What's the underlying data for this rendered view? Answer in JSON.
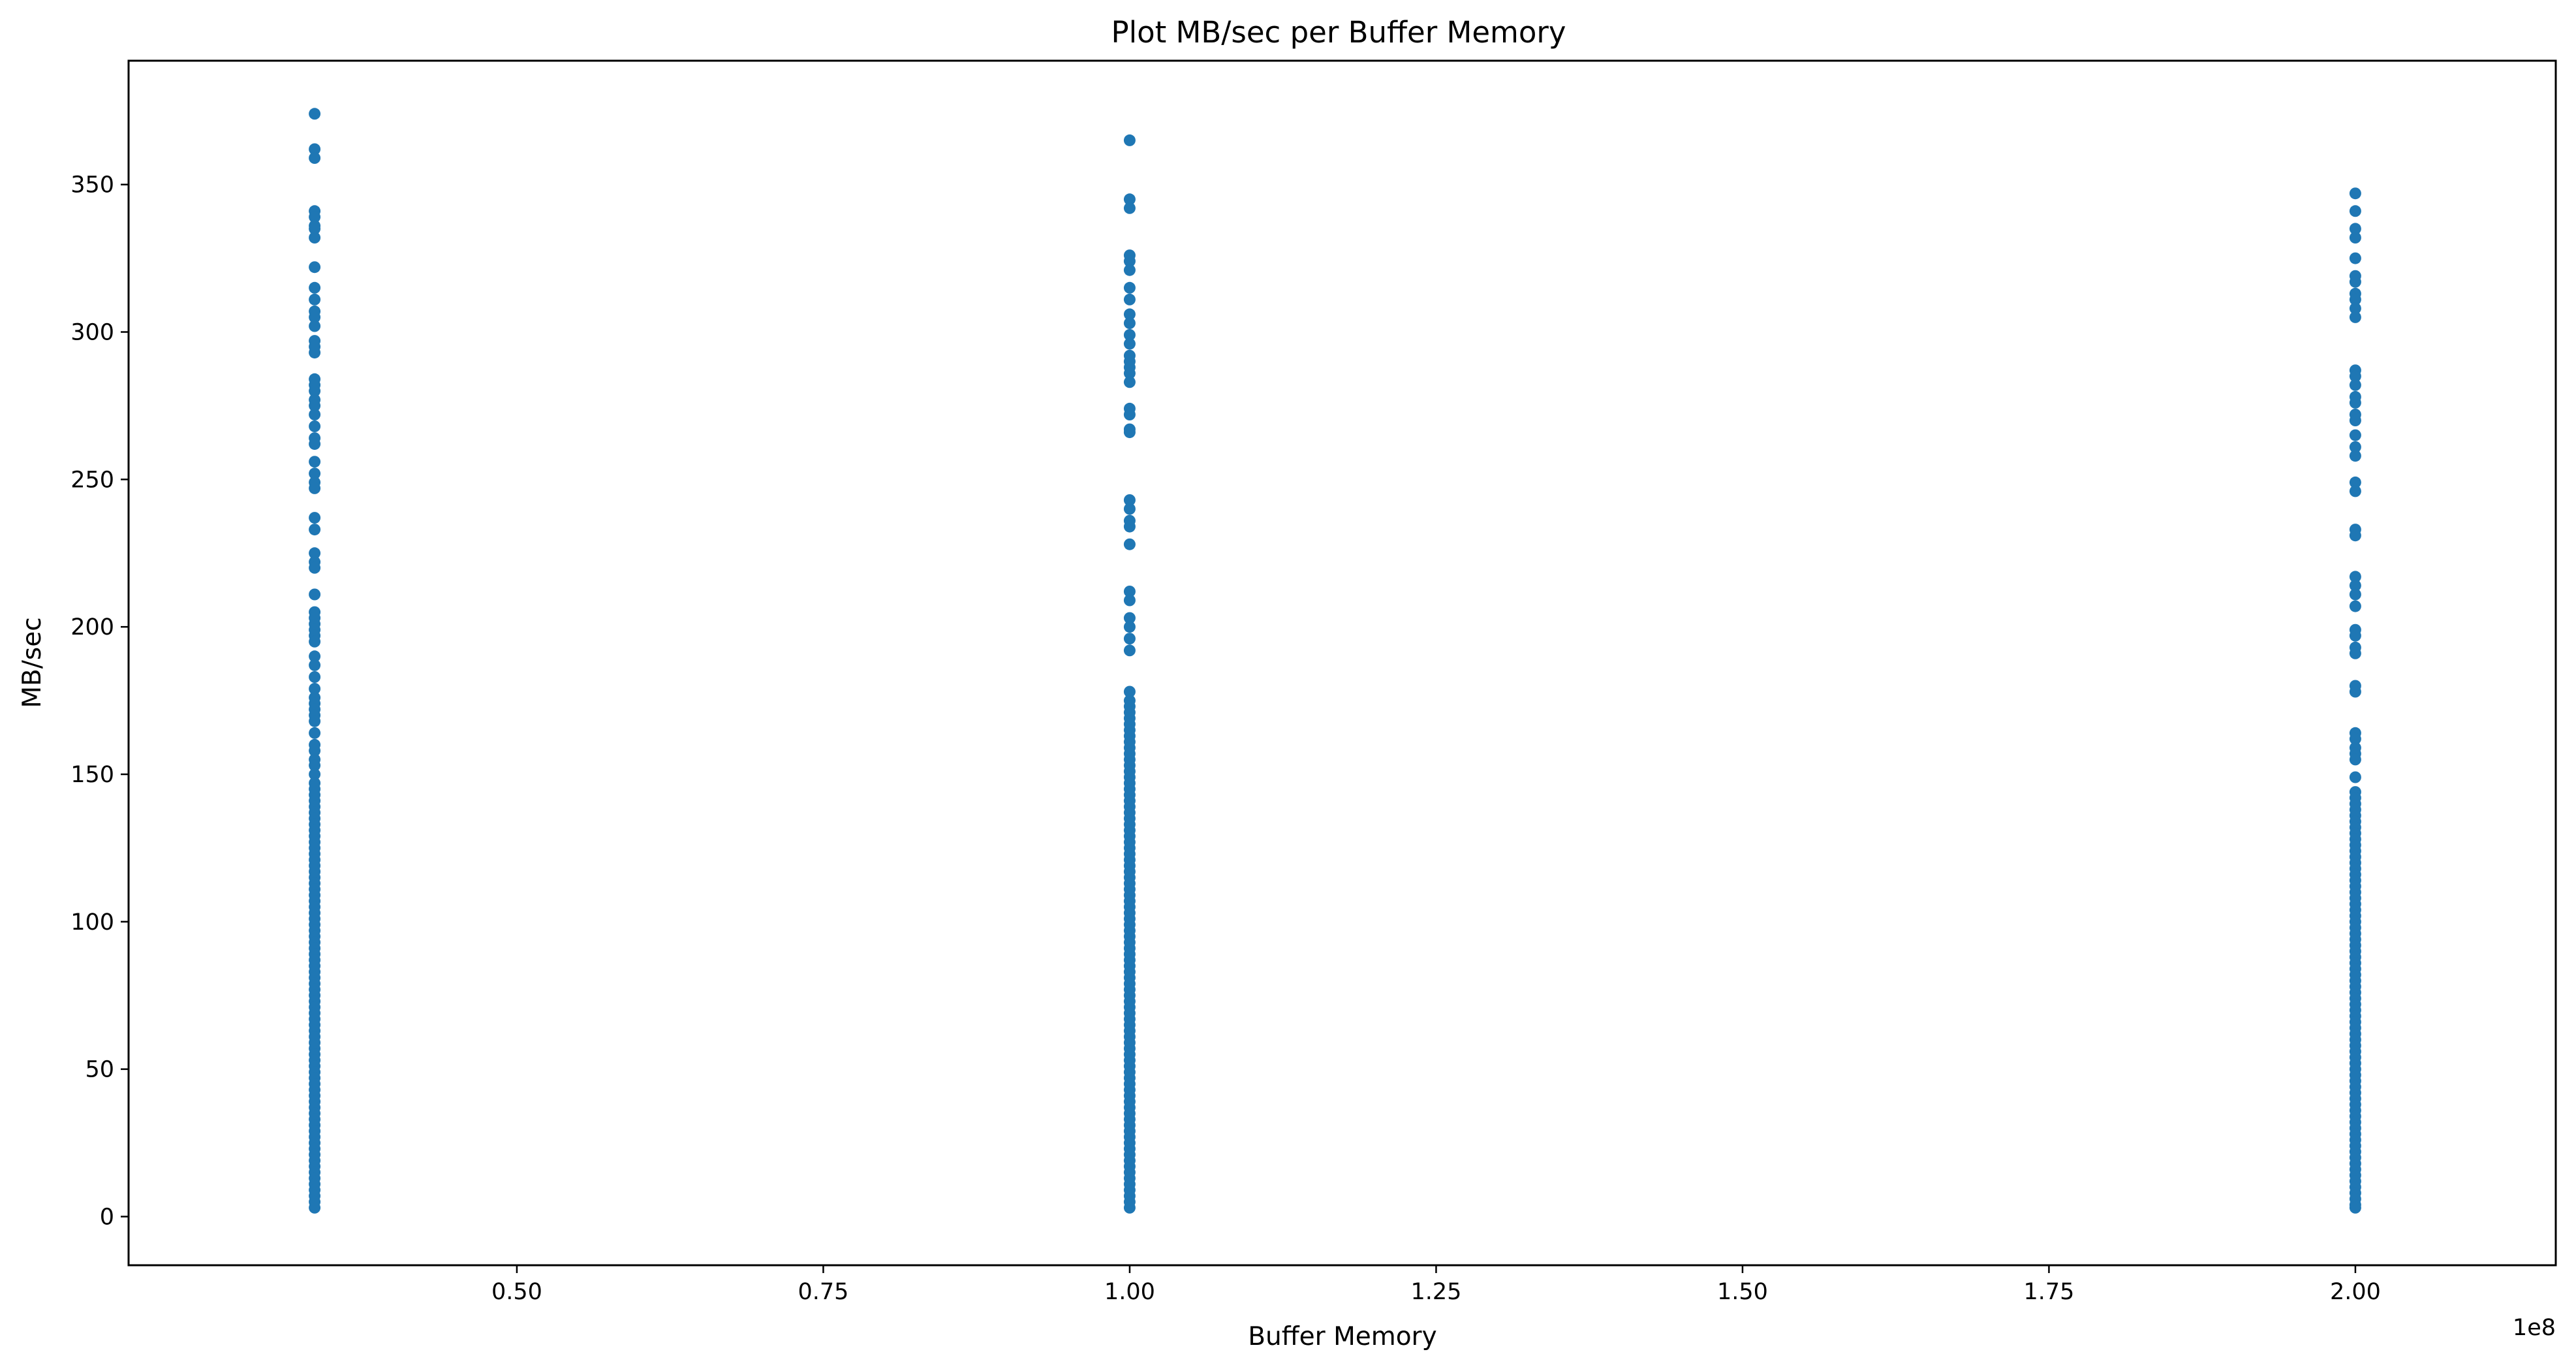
{
  "chart_data": {
    "type": "scatter",
    "title": "Plot MB/sec per Buffer Memory",
    "xlabel": "Buffer Memory",
    "ylabel": "MB/sec",
    "x_offset_label": "1e8",
    "xlim": [
      0.1832,
      2.1635
    ],
    "ylim": [
      -16.5,
      392.0
    ],
    "x_ticks": [
      0.5,
      0.75,
      1.0,
      1.25,
      1.5,
      1.75,
      2.0
    ],
    "x_tick_labels": [
      "0.50",
      "0.75",
      "1.00",
      "1.25",
      "1.50",
      "1.75",
      "2.00"
    ],
    "y_ticks": [
      0,
      50,
      100,
      150,
      200,
      250,
      300,
      350
    ],
    "y_tick_labels": [
      "0",
      "50",
      "100",
      "150",
      "200",
      "250",
      "300",
      "350"
    ],
    "grid": false,
    "marker_color": "#1f77b4",
    "series": [
      {
        "x": 0.335,
        "values": [
          374,
          362,
          359,
          341,
          339,
          336,
          335,
          332,
          322,
          315,
          311,
          307,
          305,
          302,
          297,
          295,
          293,
          284,
          282,
          280,
          277,
          275,
          272,
          268,
          264,
          262,
          256,
          252,
          249,
          247,
          237,
          233,
          225,
          222,
          220,
          211,
          205,
          203,
          201,
          199,
          197,
          195,
          190,
          187,
          183,
          179,
          176,
          174,
          172,
          170,
          168,
          164,
          160,
          158,
          155,
          153,
          150,
          147,
          145,
          143,
          141,
          139,
          137,
          135,
          133,
          131,
          129,
          127,
          125,
          123,
          121,
          119,
          117,
          115,
          113,
          111,
          109,
          107,
          105,
          103,
          101,
          99,
          97,
          95,
          93,
          91,
          89,
          87,
          85,
          83,
          81,
          79,
          77,
          75,
          73,
          71,
          69,
          67,
          65,
          63,
          61,
          59,
          57,
          55,
          53,
          51,
          49,
          47,
          45,
          43,
          41,
          39,
          37,
          35,
          33,
          31,
          29,
          27,
          25,
          23,
          21,
          19,
          17,
          15,
          13,
          11,
          9,
          7,
          5,
          3
        ]
      },
      {
        "x": 1.0,
        "values": [
          365,
          345,
          342,
          326,
          324,
          321,
          315,
          311,
          306,
          303,
          299,
          296,
          292,
          290,
          288,
          286,
          283,
          274,
          272,
          267,
          266,
          243,
          240,
          236,
          234,
          228,
          212,
          209,
          203,
          200,
          196,
          192,
          178,
          175,
          173,
          171,
          169,
          167,
          165,
          163,
          161,
          159,
          157,
          155,
          153,
          151,
          149,
          147,
          145,
          143,
          141,
          139,
          137,
          135,
          133,
          131,
          129,
          127,
          125,
          123,
          121,
          119,
          117,
          115,
          113,
          111,
          109,
          107,
          105,
          103,
          101,
          99,
          97,
          95,
          93,
          91,
          89,
          87,
          85,
          83,
          81,
          79,
          77,
          75,
          73,
          71,
          69,
          67,
          65,
          63,
          61,
          59,
          57,
          55,
          53,
          51,
          49,
          47,
          45,
          43,
          41,
          39,
          37,
          35,
          33,
          31,
          29,
          27,
          25,
          23,
          21,
          19,
          17,
          15,
          13,
          11,
          9,
          7,
          5,
          3
        ]
      },
      {
        "x": 2.0,
        "values": [
          347,
          341,
          335,
          332,
          325,
          319,
          317,
          313,
          311,
          308,
          305,
          287,
          285,
          282,
          278,
          276,
          272,
          270,
          265,
          261,
          258,
          249,
          246,
          233,
          231,
          217,
          214,
          211,
          207,
          199,
          197,
          193,
          191,
          180,
          178,
          164,
          162,
          159,
          157,
          155,
          149,
          144,
          142,
          140,
          138,
          136,
          134,
          132,
          130,
          128,
          126,
          124,
          122,
          120,
          118,
          116,
          114,
          112,
          110,
          108,
          106,
          104,
          102,
          100,
          98,
          96,
          94,
          92,
          90,
          88,
          86,
          84,
          82,
          80,
          78,
          76,
          74,
          72,
          70,
          68,
          66,
          64,
          62,
          60,
          58,
          56,
          54,
          52,
          50,
          48,
          46,
          44,
          42,
          40,
          38,
          36,
          34,
          32,
          30,
          28,
          26,
          24,
          22,
          20,
          18,
          16,
          14,
          12,
          10,
          8,
          6,
          4,
          3
        ]
      }
    ]
  }
}
